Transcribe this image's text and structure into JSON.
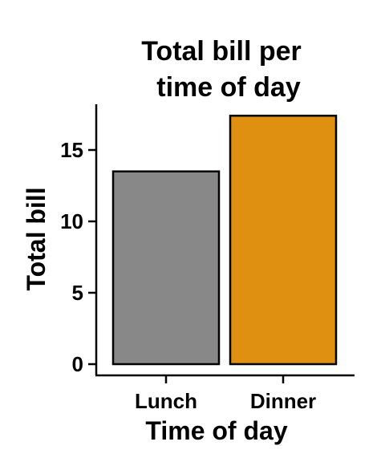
{
  "chart_data": {
    "type": "bar",
    "title_lines": [
      "Total bill per",
      "time of day"
    ],
    "xlabel": "Time of day",
    "ylabel": "Total bill",
    "categories": [
      "Lunch",
      "Dinner"
    ],
    "values": [
      13.5,
      17.4
    ],
    "colors": [
      "#888888",
      "#E09010"
    ],
    "yticks": [
      "0",
      "5",
      "10",
      "15"
    ],
    "ylim": [
      0,
      18
    ],
    "grid": false,
    "legend": "none"
  }
}
